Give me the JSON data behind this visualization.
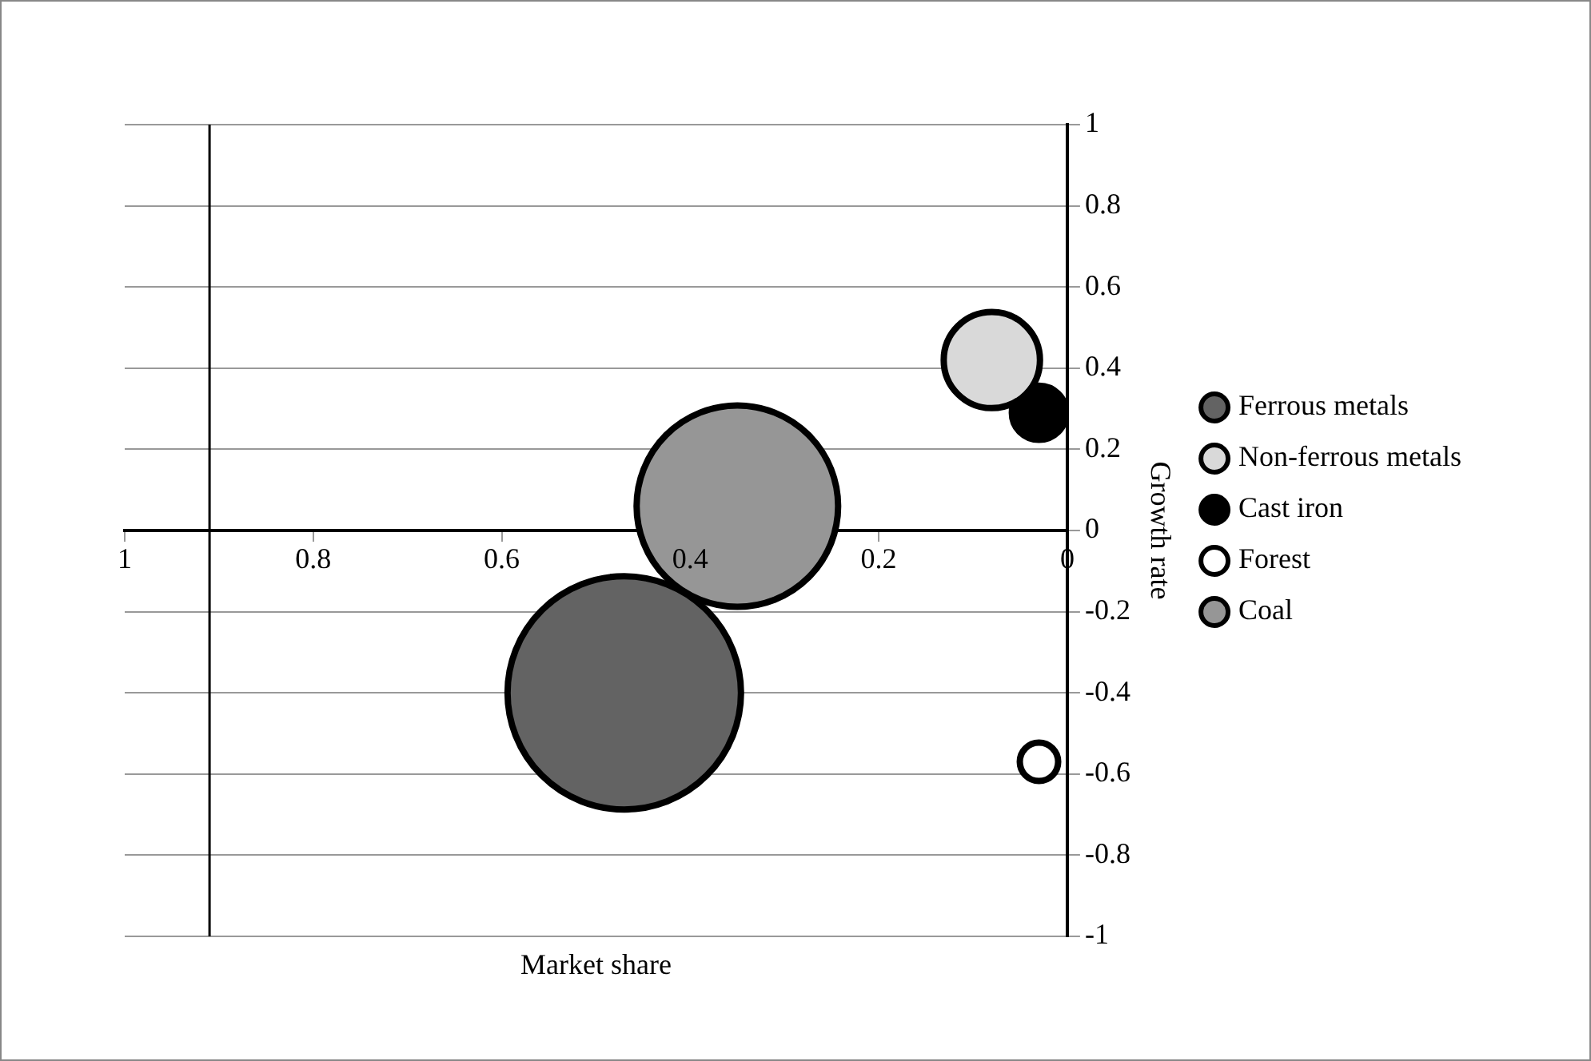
{
  "chart_data": {
    "type": "bubble",
    "xlabel": "Market share",
    "ylabel": "Growth rate",
    "xlim": [
      1,
      0
    ],
    "xticks": [
      1,
      0.8,
      0.6,
      0.4,
      0.2,
      0
    ],
    "ylim": [
      -1,
      1
    ],
    "yticks": [
      -1,
      -0.8,
      -0.6,
      -0.4,
      -0.2,
      0,
      0.2,
      0.4,
      0.6,
      0.8,
      1
    ],
    "grid": "y",
    "legend": "right",
    "ref_lines": [
      {
        "axis": "x",
        "value": 0.91,
        "color": "#000000"
      }
    ],
    "series": [
      {
        "name": "Ferrous metals",
        "color": "#636363",
        "x": [
          0.47
        ],
        "values": [
          -0.4
        ],
        "sizes": [
          1
        ]
      },
      {
        "name": "Non-ferrous metals",
        "color": "#d9d9d9",
        "x": [
          0.08
        ],
        "values": [
          0.42
        ],
        "sizes": [
          0.17
        ]
      },
      {
        "name": "Cast iron",
        "color": "#000000",
        "x": [
          0.03
        ],
        "values": [
          0.29
        ],
        "sizes": [
          0.054
        ]
      },
      {
        "name": "Forest",
        "color": "#ffffff",
        "x": [
          0.03
        ],
        "values": [
          -0.57
        ],
        "sizes": [
          0.027
        ]
      },
      {
        "name": "Coal",
        "color": "#969696",
        "x": [
          0.35
        ],
        "values": [
          0.06
        ],
        "sizes": [
          0.745
        ]
      }
    ]
  }
}
